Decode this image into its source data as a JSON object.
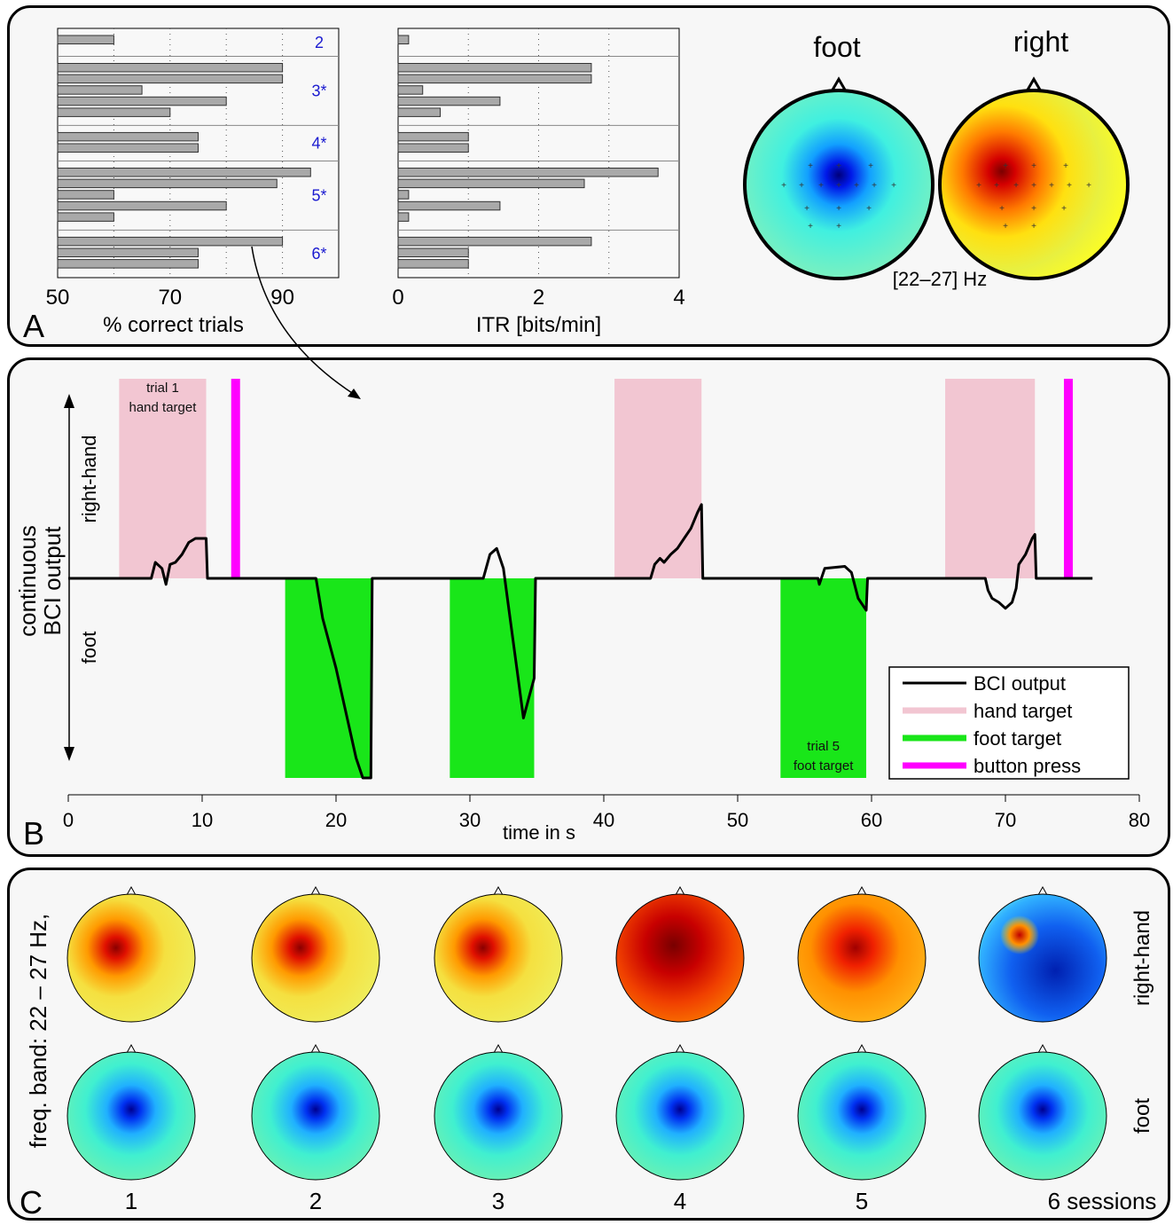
{
  "panels": {
    "a": "A",
    "b": "B",
    "c": "C"
  },
  "chart_data": [
    {
      "type": "bar",
      "panel": "A",
      "xlabel": "% correct trials",
      "xlim": [
        50,
        100
      ],
      "xticks": [
        "50",
        "70",
        "90"
      ],
      "grid": "vertical dotted",
      "groups": [
        {
          "label": "2",
          "values": [
            60
          ]
        },
        {
          "label": "3*",
          "values": [
            90,
            90,
            65,
            80,
            70
          ]
        },
        {
          "label": "4*",
          "values": [
            75,
            75
          ]
        },
        {
          "label": "5*",
          "values": [
            95,
            89,
            60,
            80,
            60
          ]
        },
        {
          "label": "6*",
          "values": [
            90,
            75,
            75
          ]
        }
      ]
    },
    {
      "type": "bar",
      "panel": "A",
      "xlabel": "ITR [bits/min]",
      "xlim": [
        0,
        4
      ],
      "xticks": [
        "0",
        "2",
        "4"
      ],
      "grid": "vertical dotted",
      "groups": [
        {
          "values": [
            0.15
          ]
        },
        {
          "values": [
            2.75,
            2.75,
            0.35,
            1.45,
            0.6
          ]
        },
        {
          "values": [
            1.0,
            1.0
          ]
        },
        {
          "values": [
            3.7,
            2.65,
            0.15,
            1.45,
            0.15
          ]
        },
        {
          "values": [
            2.75,
            1.0,
            1.0
          ]
        }
      ]
    },
    {
      "type": "heatmap",
      "panel": "A",
      "maps": [
        {
          "title": "foot",
          "polarity": "blue"
        },
        {
          "title": "right",
          "polarity": "red"
        }
      ],
      "caption": "[22–27] Hz"
    },
    {
      "type": "line",
      "panel": "B",
      "xlabel": "time in s",
      "ylabel": "continuous\nBCI output",
      "ylabel_line1": "continuous",
      "ylabel_line2": "BCI output",
      "y_up_label": "right-hand",
      "y_down_label": "foot",
      "xlim": [
        0,
        80
      ],
      "xticks": [
        0,
        10,
        20,
        30,
        40,
        50,
        60,
        70,
        80
      ],
      "ylim": [
        -1,
        1
      ],
      "legend_position": "bottom-right",
      "legend": [
        {
          "label": "BCI output",
          "color": "#000000"
        },
        {
          "label": "hand target",
          "color": "#f2c6d2"
        },
        {
          "label": "foot target",
          "color": "#19e619"
        },
        {
          "label": "button press",
          "color": "#ff00ff"
        }
      ],
      "hand_targets": [
        [
          3.8,
          10.3
        ],
        [
          40.8,
          47.3
        ],
        [
          65.5,
          72.2
        ]
      ],
      "foot_targets": [
        [
          16.2,
          22.7
        ],
        [
          28.5,
          34.8
        ],
        [
          53.2,
          59.6
        ]
      ],
      "button_presses": [
        12.5,
        74.7
      ],
      "annotations": [
        {
          "line1": "trial 1",
          "line2": "hand target"
        },
        {
          "line1": "trial 5",
          "line2": "foot target"
        }
      ],
      "series": [
        {
          "name": "BCI output",
          "x": [
            0,
            6.2,
            6.5,
            7.0,
            7.3,
            7.6,
            8.0,
            8.5,
            9.0,
            9.5,
            10.0,
            10.3,
            10.4,
            18.5,
            19.0,
            20.0,
            21.0,
            21.5,
            22.0,
            22.6,
            22.7,
            31.0,
            31.5,
            32.0,
            32.5,
            33.0,
            33.5,
            34.0,
            34.4,
            34.8,
            34.9,
            43.5,
            43.8,
            44.2,
            44.5,
            45.0,
            45.5,
            46.0,
            46.5,
            47.0,
            47.3,
            47.4,
            56.0,
            56.1,
            56.5,
            58.0,
            58.5,
            59.0,
            59.5,
            59.6,
            59.7,
            68.5,
            68.7,
            69.0,
            69.5,
            70.0,
            70.5,
            70.8,
            71.0,
            71.5,
            72.0,
            72.2,
            72.3,
            76.5
          ],
          "y": [
            0,
            0,
            0.08,
            0.05,
            -0.03,
            0.07,
            0.08,
            0.12,
            0.18,
            0.2,
            0.2,
            0.2,
            0,
            0,
            -0.2,
            -0.45,
            -0.75,
            -0.9,
            -1.0,
            -1.0,
            0,
            0,
            0.12,
            0.15,
            0.05,
            -0.2,
            -0.45,
            -0.7,
            -0.6,
            -0.5,
            0,
            0,
            0.07,
            0.1,
            0.08,
            0.12,
            0.15,
            0.2,
            0.25,
            0.33,
            0.37,
            0,
            0,
            -0.03,
            0.05,
            0.06,
            0.03,
            -0.1,
            -0.15,
            -0.16,
            0,
            0,
            -0.06,
            -0.1,
            -0.12,
            -0.15,
            -0.12,
            -0.05,
            0.07,
            0.12,
            0.2,
            0.22,
            0,
            0
          ]
        }
      ]
    },
    {
      "type": "heatmap",
      "panel": "C",
      "ylabel": "freq. band: 22 – 27 Hz,",
      "rows": [
        {
          "label": "right-hand",
          "sessions": [
            "yellow-red",
            "yellow-red",
            "yellow-red",
            "red",
            "orange-red",
            "blue"
          ]
        },
        {
          "label": "foot",
          "sessions": [
            "cyan-blue",
            "cyan-blue",
            "cyan-blue",
            "cyan-blue",
            "cyan-blue",
            "cyan-blue"
          ]
        }
      ],
      "session_labels": [
        "1",
        "2",
        "3",
        "4",
        "5",
        "6 sessions"
      ]
    }
  ]
}
